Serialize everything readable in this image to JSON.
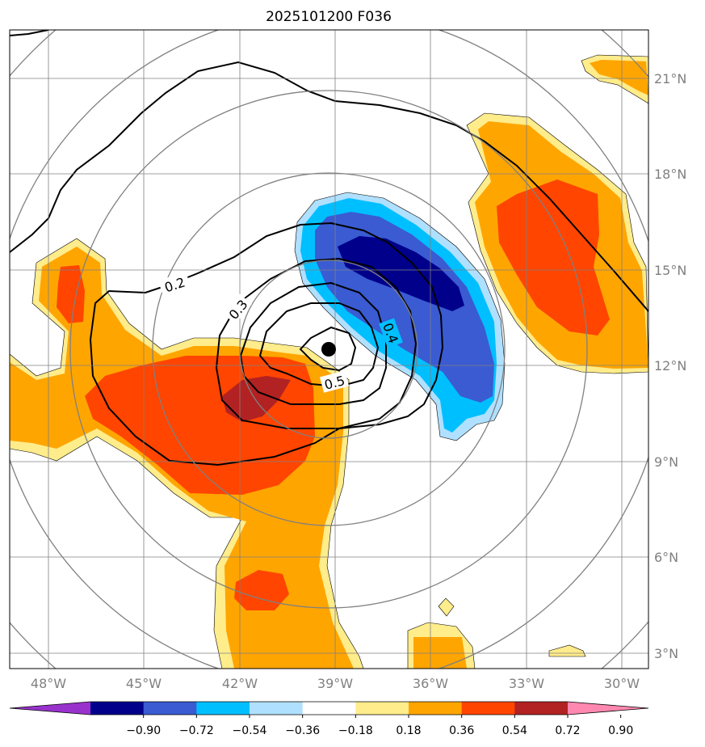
{
  "title": "2025101200 F036",
  "map": {
    "lon_range": [
      -49,
      -29.5
    ],
    "lat_range": [
      2.5,
      22.5
    ],
    "lon_ticks": [
      "48°W",
      "45°W",
      "42°W",
      "39°W",
      "36°W",
      "33°W",
      "30°W"
    ],
    "lat_ticks": [
      "3°N",
      "6°N",
      "9°N",
      "12°N",
      "15°N",
      "18°N",
      "21°N"
    ],
    "gridlines": true,
    "center": {
      "lon": -39.1,
      "lat": 12.5
    },
    "range_rings_deg": [
      2,
      4,
      6,
      8,
      10
    ],
    "contours": [
      {
        "label": "0.2",
        "value": 0.2
      },
      {
        "label": "0.3",
        "value": 0.3
      },
      {
        "label": "0.4",
        "value": 0.4
      },
      {
        "label": "0.5",
        "value": 0.5
      }
    ]
  },
  "colorbar": {
    "ticks": [
      "−0.90",
      "−0.72",
      "−0.54",
      "−0.36",
      "−0.18",
      "0.18",
      "0.36",
      "0.54",
      "0.72",
      "0.90"
    ],
    "colors": [
      "#9932cc",
      "#00008b",
      "#3a5bd2",
      "#00bfff",
      "#b0e0ff",
      "#ffffff",
      "#ffec8b",
      "#ffa500",
      "#ff4500",
      "#b22222",
      "#ff88b0"
    ],
    "extend": "both"
  }
}
